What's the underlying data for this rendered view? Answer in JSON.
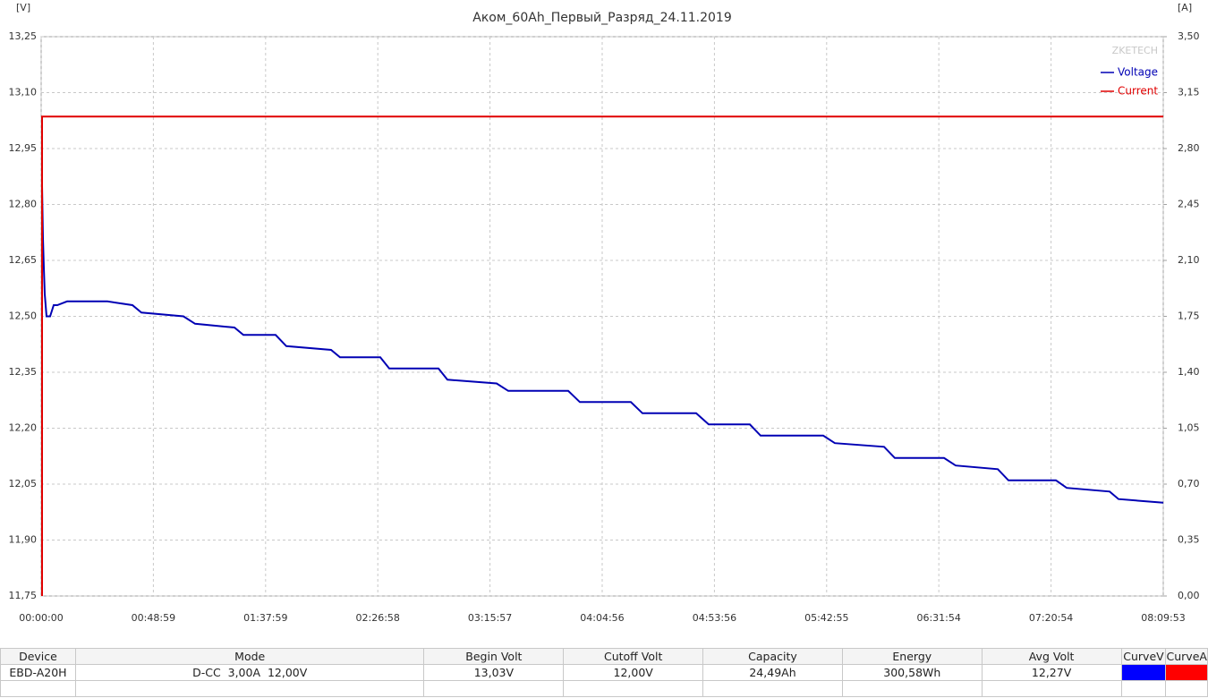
{
  "chart_data": {
    "type": "line",
    "title": "Аком_60Ah_Первый_Разряд_24.11.2019",
    "y_unit": "[V]",
    "y2_unit": "[A]",
    "watermark": "ZKETECH",
    "xlim": [
      0,
      29393
    ],
    "xticks": [
      {
        "value": 0,
        "label": "00:00:00"
      },
      {
        "value": 2939,
        "label": "00:48:59"
      },
      {
        "value": 5879,
        "label": "01:37:59"
      },
      {
        "value": 8818,
        "label": "02:26:58"
      },
      {
        "value": 11757,
        "label": "03:15:57"
      },
      {
        "value": 14696,
        "label": "04:04:56"
      },
      {
        "value": 17636,
        "label": "04:53:56"
      },
      {
        "value": 20575,
        "label": "05:42:55"
      },
      {
        "value": 23514,
        "label": "06:31:54"
      },
      {
        "value": 26454,
        "label": "07:20:54"
      },
      {
        "value": 29393,
        "label": "08:09:53"
      }
    ],
    "ylim": [
      11.75,
      13.25
    ],
    "yticks": [
      {
        "value": 11.75,
        "label": "11,75"
      },
      {
        "value": 11.9,
        "label": "11,90"
      },
      {
        "value": 12.05,
        "label": "12,05"
      },
      {
        "value": 12.2,
        "label": "12,20"
      },
      {
        "value": 12.35,
        "label": "12,35"
      },
      {
        "value": 12.5,
        "label": "12,50"
      },
      {
        "value": 12.65,
        "label": "12,65"
      },
      {
        "value": 12.8,
        "label": "12,80"
      },
      {
        "value": 12.95,
        "label": "12,95"
      },
      {
        "value": 13.1,
        "label": "13,10"
      },
      {
        "value": 13.25,
        "label": "13,25"
      }
    ],
    "y2lim": [
      0,
      3.5
    ],
    "y2ticks": [
      {
        "value": 0,
        "label": "0,00"
      },
      {
        "value": 0.35,
        "label": "0,35"
      },
      {
        "value": 0.7,
        "label": "0,70"
      },
      {
        "value": 1.05,
        "label": "1,05"
      },
      {
        "value": 1.4,
        "label": "1,40"
      },
      {
        "value": 1.75,
        "label": "1,75"
      },
      {
        "value": 2.1,
        "label": "2,10"
      },
      {
        "value": 2.45,
        "label": "2,45"
      },
      {
        "value": 2.8,
        "label": "2,80"
      },
      {
        "value": 3.15,
        "label": "3,15"
      },
      {
        "value": 3.5,
        "label": "3,50"
      }
    ],
    "grid": true,
    "legend": "upper right",
    "series": [
      {
        "name": "Voltage",
        "color": "#0000b4",
        "x": [
          23,
          47,
          70,
          94,
          141,
          234,
          328,
          422,
          680,
          1735,
          2391,
          2625,
          3727,
          4032,
          5063,
          5297,
          6141,
          6423,
          7595,
          7829,
          8884,
          9119,
          10408,
          10642,
          11931,
          12236,
          13806,
          14111,
          15447,
          15752,
          17158,
          17486,
          18564,
          18846,
          20487,
          20791,
          22081,
          22362,
          23651,
          23956,
          25058,
          25339,
          26582,
          26863,
          27988,
          28222,
          29393
        ],
        "values": [
          12.85,
          12.71,
          12.63,
          12.56,
          12.5,
          12.5,
          12.53,
          12.53,
          12.54,
          12.54,
          12.53,
          12.51,
          12.5,
          12.48,
          12.47,
          12.45,
          12.45,
          12.42,
          12.41,
          12.39,
          12.39,
          12.36,
          12.36,
          12.33,
          12.32,
          12.3,
          12.3,
          12.27,
          12.27,
          12.24,
          12.24,
          12.21,
          12.21,
          12.18,
          12.18,
          12.16,
          12.15,
          12.12,
          12.12,
          12.1,
          12.09,
          12.06,
          12.06,
          12.04,
          12.03,
          12.01,
          12.0
        ]
      },
      {
        "name": "Current",
        "color": "#e00000",
        "axis": "y2",
        "x": [
          23,
          23,
          29393
        ],
        "values": [
          0,
          3.0,
          3.0
        ]
      }
    ]
  },
  "table": {
    "columns": [
      "Device",
      "Mode",
      "Begin Volt",
      "Cutoff Volt",
      "Capacity",
      "Energy",
      "Avg Volt",
      "CurveV",
      "CurveA"
    ],
    "rows": [
      [
        "EBD-A20H",
        "D-CC  3,00A  12,00V",
        "13,03V",
        "12,00V",
        "24,49Ah",
        "300,58Wh",
        "12,27V"
      ]
    ]
  }
}
